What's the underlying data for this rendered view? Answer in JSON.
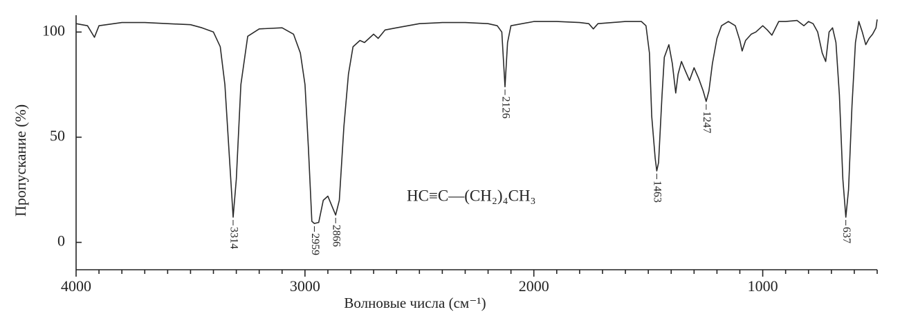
{
  "chart_data": {
    "type": "line",
    "x_label": "Волновые числа (см⁻¹)",
    "y_label": "Пропускание  (%)",
    "formula": "HC≡C—(CH₂)₄CH₃",
    "color": "#2a2a2a",
    "xlim": [
      4000,
      500
    ],
    "ylim": [
      -13,
      108
    ],
    "xticks": [
      4000,
      3000,
      2000,
      1000
    ],
    "yticks": [
      0,
      50,
      100
    ],
    "x": [
      4000,
      3950,
      3920,
      3900,
      3800,
      3700,
      3600,
      3500,
      3450,
      3400,
      3370,
      3350,
      3330,
      3314,
      3300,
      3280,
      3250,
      3200,
      3100,
      3050,
      3020,
      3000,
      2985,
      2970,
      2959,
      2940,
      2920,
      2900,
      2885,
      2866,
      2850,
      2830,
      2810,
      2790,
      2760,
      2740,
      2700,
      2680,
      2650,
      2600,
      2500,
      2400,
      2300,
      2200,
      2160,
      2140,
      2126,
      2115,
      2100,
      2000,
      1900,
      1800,
      1760,
      1740,
      1720,
      1600,
      1530,
      1510,
      1495,
      1485,
      1470,
      1463,
      1455,
      1440,
      1430,
      1410,
      1395,
      1380,
      1370,
      1355,
      1340,
      1320,
      1300,
      1280,
      1260,
      1247,
      1235,
      1220,
      1200,
      1180,
      1150,
      1120,
      1100,
      1090,
      1075,
      1050,
      1030,
      1000,
      980,
      960,
      930,
      900,
      850,
      820,
      800,
      780,
      760,
      740,
      725,
      710,
      695,
      680,
      665,
      650,
      637,
      625,
      610,
      595,
      580,
      565,
      550,
      535,
      520,
      505,
      500
    ],
    "values": [
      104,
      103,
      97.5,
      103,
      104.5,
      104.5,
      104,
      103.5,
      102,
      100,
      93,
      75,
      40,
      12,
      30,
      75,
      98,
      101.5,
      102,
      99,
      90,
      75,
      45,
      10,
      9,
      9.5,
      20,
      22,
      18,
      13,
      20,
      55,
      80,
      93,
      96,
      95,
      99,
      97,
      101,
      102,
      104,
      104.5,
      104.5,
      104,
      103,
      100,
      74,
      95,
      103,
      105,
      105,
      104.5,
      104,
      101.5,
      104,
      105,
      105,
      103,
      90,
      60,
      40,
      34,
      38,
      70,
      88,
      94,
      85,
      71,
      80,
      86,
      82,
      77,
      83,
      78,
      72,
      67,
      72,
      85,
      97,
      103,
      105,
      103,
      96,
      91,
      96,
      99,
      100,
      103,
      101,
      98.5,
      105,
      105,
      105.5,
      103,
      105,
      104,
      100,
      90,
      86,
      100,
      102,
      95,
      70,
      30,
      12,
      25,
      65,
      95,
      105,
      100,
      94,
      97,
      99,
      102,
      106
    ],
    "peaks": [
      3314,
      2959,
      2866,
      2126,
      1463,
      1247,
      637
    ]
  }
}
